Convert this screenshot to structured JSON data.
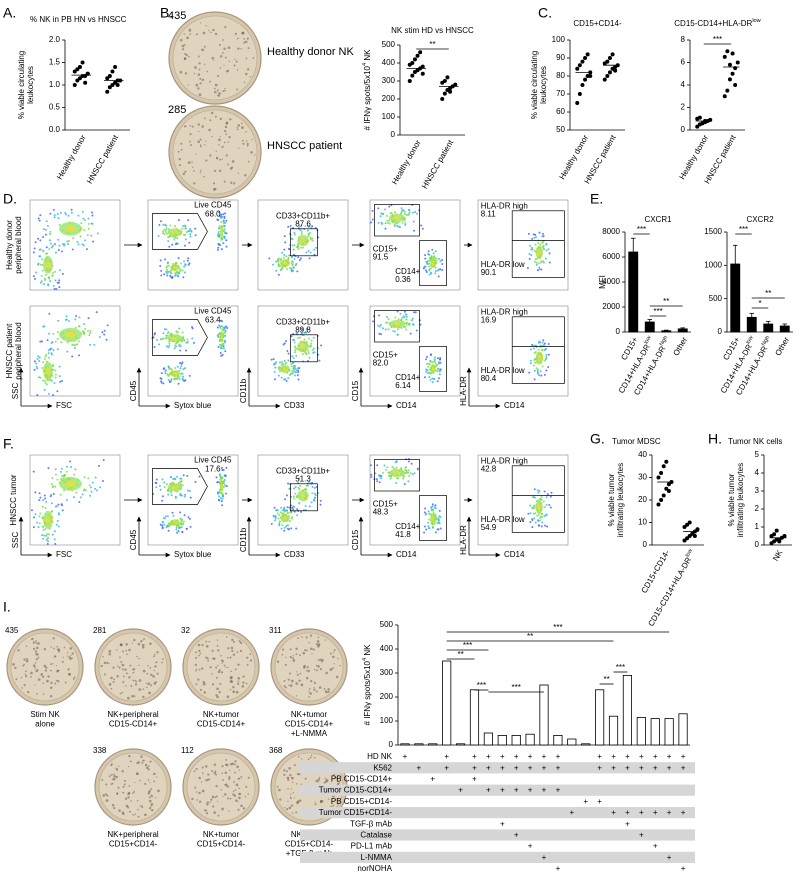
{
  "panels": {
    "A": {
      "letter": "A.",
      "title": [
        "% NK in PB HN vs HNSCC"
      ],
      "ylabel": [
        [
          "% viable circulating"
        ],
        [
          "leukocytes"
        ]
      ],
      "categories": [
        [
          "Healthy donor"
        ],
        [
          "HNSCC patient"
        ]
      ],
      "ylim": [
        0,
        2
      ],
      "yticks": [
        {
          "value": 0,
          "label": "0.0"
        },
        0.5,
        {
          "value": 1,
          "label": "1.0"
        },
        1.5,
        {
          "value": 2,
          "label": "2.0"
        }
      ],
      "points": [
        [
          1.0,
          1.1,
          1.15,
          1.2,
          1.2,
          1.25,
          1.3,
          1.35,
          1.4,
          1.5,
          1.05,
          1.25
        ],
        [
          0.85,
          0.95,
          1.0,
          1.05,
          1.1,
          1.1,
          1.15,
          1.2,
          1.3,
          1.4,
          1.0
        ]
      ],
      "means": [
        1.22,
        1.1
      ]
    },
    "B": {
      "letter": "B.",
      "plates": [
        {
          "count": 435,
          "label": "Healthy donor NK"
        },
        {
          "count": 285,
          "label": "HNSCC patient"
        }
      ],
      "chart": {
        "title": [
          "NK stim HD vs HNSCC"
        ],
        "ylabel": [
          [
            "# IFNγ spots/5x10",
            "4",
            " NK"
          ]
        ],
        "categories": [
          [
            "Healthy donor"
          ],
          [
            "HNSCC patient"
          ]
        ],
        "ylim": [
          0,
          500
        ],
        "yticks": [
          0,
          100,
          200,
          300,
          400,
          500
        ],
        "points": [
          [
            300,
            330,
            350,
            360,
            370,
            380,
            390,
            400,
            420,
            440,
            460,
            340
          ],
          [
            200,
            230,
            250,
            260,
            270,
            280,
            290,
            300,
            320,
            240
          ]
        ],
        "means": [
          370,
          270
        ],
        "significance": [
          "**"
        ]
      }
    },
    "C": {
      "letter": "C.",
      "charts": [
        {
          "title": [
            "CD15+CD14-"
          ],
          "ylabel": [
            [
              "% viable circulating"
            ],
            [
              "leukocytes"
            ]
          ],
          "categories": [
            [
              "Healthy donor"
            ],
            [
              "HNSCC patient"
            ]
          ],
          "ylim": [
            50,
            100
          ],
          "yticks": [
            50,
            60,
            70,
            80,
            90,
            100
          ],
          "points": [
            [
              65,
              70,
              75,
              78,
              80,
              82,
              84,
              86,
              88,
              90,
              92,
              80
            ],
            [
              78,
              80,
              82,
              84,
              85,
              86,
              87,
              88,
              90,
              92,
              83
            ]
          ],
          "means": [
            82,
            86
          ]
        },
        {
          "title": [
            "CD15-CD14+HLA-DR",
            "low"
          ],
          "categories": [
            [
              "Healthy donor"
            ],
            [
              "HNSCC patient"
            ]
          ],
          "ylim": [
            0,
            8
          ],
          "yticks": [
            0,
            2,
            4,
            6,
            8
          ],
          "points": [
            [
              0.3,
              0.5,
              0.6,
              0.7,
              0.8,
              0.9,
              1.0,
              1.1,
              0.6,
              0.8
            ],
            [
              3.0,
              3.5,
              4.5,
              5.0,
              5.5,
              6.0,
              6.5,
              7.0,
              5.8,
              6.8,
              4.0
            ]
          ],
          "means": [
            0.8,
            5.6
          ],
          "significance": [
            "***"
          ]
        }
      ]
    },
    "D": {
      "letter": "D.",
      "rows": [
        {
          "label": [
            "Healthy donor",
            "peripheral blood"
          ],
          "gates": [
            [
              "Live CD45",
              "68.0"
            ],
            [
              "CD33+CD11b+",
              "87.6"
            ],
            [
              "CD15+",
              "91.5",
              "CD14+",
              "0.36"
            ],
            [
              "HLA-DR high",
              "8.11",
              "HLA-DR low",
              "90.1"
            ]
          ]
        },
        {
          "label": [
            "HNSCC patient",
            "peripheral blood"
          ],
          "gates": [
            [
              "Live CD45",
              "63.4"
            ],
            [
              "CD33+CD11b+",
              "89.8"
            ],
            [
              "CD15+",
              "82.0",
              "CD14+",
              "6.14"
            ],
            [
              "HLA-DR high",
              "16.9",
              "HLA-DR low",
              "80.4"
            ]
          ]
        }
      ],
      "axes": [
        [
          "SSC",
          "FSC"
        ],
        [
          "CD45",
          "Sytox blue"
        ],
        [
          "CD11b",
          "CD33"
        ],
        [
          "CD15",
          "CD14"
        ],
        [
          "HLA-DR",
          "CD14"
        ]
      ]
    },
    "E": {
      "letter": "E.",
      "ylabel": [
        [
          "MFI"
        ]
      ],
      "charts": [
        {
          "title": [
            "CXCR1"
          ],
          "categories": [
            [
              "CD15+"
            ],
            [
              "CD14+HLA-DR",
              "low"
            ],
            [
              "CD14+HLA-DR",
              "high"
            ],
            [
              "Other"
            ]
          ],
          "values": [
            6400,
            800,
            100,
            250
          ],
          "errors": [
            1100,
            200,
            50,
            80
          ],
          "ylim": [
            0,
            8000
          ],
          "yticks": [
            0,
            2000,
            4000,
            6000,
            8000
          ],
          "significance": [
            "***",
            "**",
            "***"
          ]
        },
        {
          "title": [
            "CXCR2"
          ],
          "categories": [
            [
              "CD15+"
            ],
            [
              "CD14+HLA-DR",
              "low"
            ],
            [
              "CD14+HLA-DR",
              "high"
            ],
            [
              "Other"
            ]
          ],
          "values": [
            1020,
            220,
            120,
            90
          ],
          "errors": [
            280,
            60,
            40,
            30
          ],
          "ylim": [
            0,
            1500
          ],
          "yticks": [
            0,
            500,
            1000,
            1500
          ],
          "significance": [
            "***",
            "**",
            "*"
          ]
        }
      ]
    },
    "F": {
      "letter": "F.",
      "rows": [
        {
          "label": [
            "HNSCC tumor"
          ],
          "gates": [
            [
              "Live CD45",
              "17.6"
            ],
            [
              "CD33+CD11b+",
              "51.3"
            ],
            [
              "CD15+",
              "48.3",
              "CD14+",
              "41.8"
            ],
            [
              "HLA-DR high",
              "42.8",
              "HLA-DR low",
              "54.9"
            ]
          ]
        }
      ],
      "axes": [
        [
          "SSC",
          "FSC"
        ],
        [
          "CD45",
          "Sytox blue"
        ],
        [
          "CD11b",
          "CD33"
        ],
        [
          "CD15",
          "CD14"
        ],
        [
          "HLA-DR",
          "CD14"
        ]
      ]
    },
    "G": {
      "letter": "G.",
      "title": [
        "Tumor MDSC"
      ],
      "ylabel": [
        [
          "% viable tumor"
        ],
        [
          "infiltrating leukocytes"
        ]
      ],
      "categories": [
        [
          "CD15+CD14-"
        ],
        [
          "CD15-CD14+HLA-DR",
          "low"
        ]
      ],
      "ylim": [
        0,
        40
      ],
      "yticks": [
        0,
        10,
        20,
        30,
        40
      ],
      "points": [
        [
          18,
          20,
          22,
          25,
          27,
          28,
          30,
          32,
          35,
          37,
          24
        ],
        [
          2,
          3,
          4,
          5,
          6,
          7,
          8,
          9,
          10,
          5,
          4
        ]
      ],
      "means": [
        28,
        6
      ]
    },
    "H": {
      "letter": "H.",
      "title": [
        "Tumor NK cells"
      ],
      "ylabel": [
        [
          "% viable tumor"
        ],
        [
          "infiltrating leukocytes"
        ]
      ],
      "categories": [
        [
          "NK"
        ]
      ],
      "ylim": [
        0,
        5
      ],
      "yticks": [
        0,
        1,
        2,
        3,
        4,
        5
      ],
      "points": [
        [
          0.1,
          0.2,
          0.3,
          0.3,
          0.4,
          0.5,
          0.5,
          0.6,
          0.8,
          0.2
        ]
      ],
      "means": [
        0.4
      ]
    },
    "I": {
      "letter": "I.",
      "plates": [
        {
          "count": 435,
          "caption": [
            "Stim NK",
            "alone"
          ]
        },
        {
          "count": 281,
          "caption": [
            "NK+peripheral",
            "CD15-CD14+"
          ]
        },
        {
          "count": 32,
          "caption": [
            "NK+tumor",
            "CD15-CD14+"
          ]
        },
        {
          "count": 311,
          "caption": [
            "NK+tumor",
            "CD15-CD14+",
            "+L-NMMA"
          ]
        },
        {
          "count": 338,
          "caption": [
            "NK+peripheral",
            "CD15+CD14-"
          ]
        },
        {
          "count": 112,
          "caption": [
            "NK+tumor",
            "CD15+CD14-"
          ]
        },
        {
          "count": 368,
          "caption": [
            "NK+tumor",
            "CD15+CD14-",
            "+TGF-β mAb"
          ]
        }
      ],
      "chart": {
        "ylabel": [
          [
            "# IFNγ spots/5x10",
            "4",
            " NK"
          ]
        ],
        "ylim": [
          0,
          500
        ],
        "yticks": [
          0,
          100,
          200,
          300,
          400,
          500
        ],
        "values": [
          5,
          5,
          5,
          350,
          5,
          230,
          50,
          40,
          40,
          45,
          250,
          40,
          25,
          5,
          230,
          120,
          290,
          115,
          110,
          110,
          130
        ],
        "significance": [
          "***",
          "**",
          "***",
          "**",
          "***",
          "***",
          "**",
          "***"
        ]
      },
      "table": {
        "symbol": "+",
        "rows": [
          {
            "label": "HD NK",
            "plus": [
              true,
              false,
              false,
              true,
              false,
              true,
              true,
              true,
              true,
              true,
              true,
              true,
              false,
              false,
              true,
              true,
              true,
              true,
              true,
              true,
              true
            ]
          },
          {
            "label": "K562",
            "plus": [
              false,
              true,
              false,
              true,
              false,
              true,
              true,
              true,
              true,
              true,
              true,
              true,
              false,
              false,
              true,
              true,
              true,
              true,
              true,
              true,
              true
            ]
          },
          {
            "label": "PB CD15-CD14+",
            "plus": [
              false,
              false,
              true,
              false,
              false,
              true,
              false,
              false,
              false,
              false,
              false,
              false,
              false,
              false,
              false,
              false,
              false,
              false,
              false,
              false,
              false
            ]
          },
          {
            "label": "Tumor CD15-CD14+",
            "plus": [
              false,
              false,
              false,
              false,
              true,
              false,
              true,
              true,
              true,
              true,
              true,
              true,
              false,
              false,
              false,
              false,
              false,
              false,
              false,
              false,
              false
            ]
          },
          {
            "label": "PB CD15+CD14-",
            "plus": [
              false,
              false,
              false,
              false,
              false,
              false,
              false,
              false,
              false,
              false,
              false,
              false,
              false,
              true,
              true,
              false,
              false,
              false,
              false,
              false,
              false
            ]
          },
          {
            "label": "Tumor CD15+CD14-",
            "plus": [
              false,
              false,
              false,
              false,
              false,
              false,
              false,
              false,
              false,
              false,
              false,
              false,
              true,
              false,
              false,
              true,
              true,
              true,
              true,
              true,
              true
            ]
          },
          {
            "label": "TGF-β mAb",
            "plus": [
              false,
              false,
              false,
              false,
              false,
              false,
              false,
              true,
              false,
              false,
              false,
              false,
              false,
              false,
              false,
              false,
              true,
              false,
              false,
              false,
              false
            ]
          },
          {
            "label": "Catalase",
            "plus": [
              false,
              false,
              false,
              false,
              false,
              false,
              false,
              false,
              true,
              false,
              false,
              false,
              false,
              false,
              false,
              false,
              false,
              true,
              false,
              false,
              false
            ]
          },
          {
            "label": "PD-L1 mAb",
            "plus": [
              false,
              false,
              false,
              false,
              false,
              false,
              false,
              false,
              false,
              true,
              false,
              false,
              false,
              false,
              false,
              false,
              false,
              false,
              true,
              false,
              false
            ]
          },
          {
            "label": "L-NMMA",
            "plus": [
              false,
              false,
              false,
              false,
              false,
              false,
              false,
              false,
              false,
              false,
              true,
              false,
              false,
              false,
              false,
              false,
              false,
              false,
              false,
              true,
              false
            ]
          },
          {
            "label": "norNOHA",
            "plus": [
              false,
              false,
              false,
              false,
              false,
              false,
              false,
              false,
              false,
              false,
              false,
              true,
              false,
              false,
              false,
              false,
              false,
              false,
              false,
              false,
              true
            ]
          }
        ]
      }
    }
  }
}
